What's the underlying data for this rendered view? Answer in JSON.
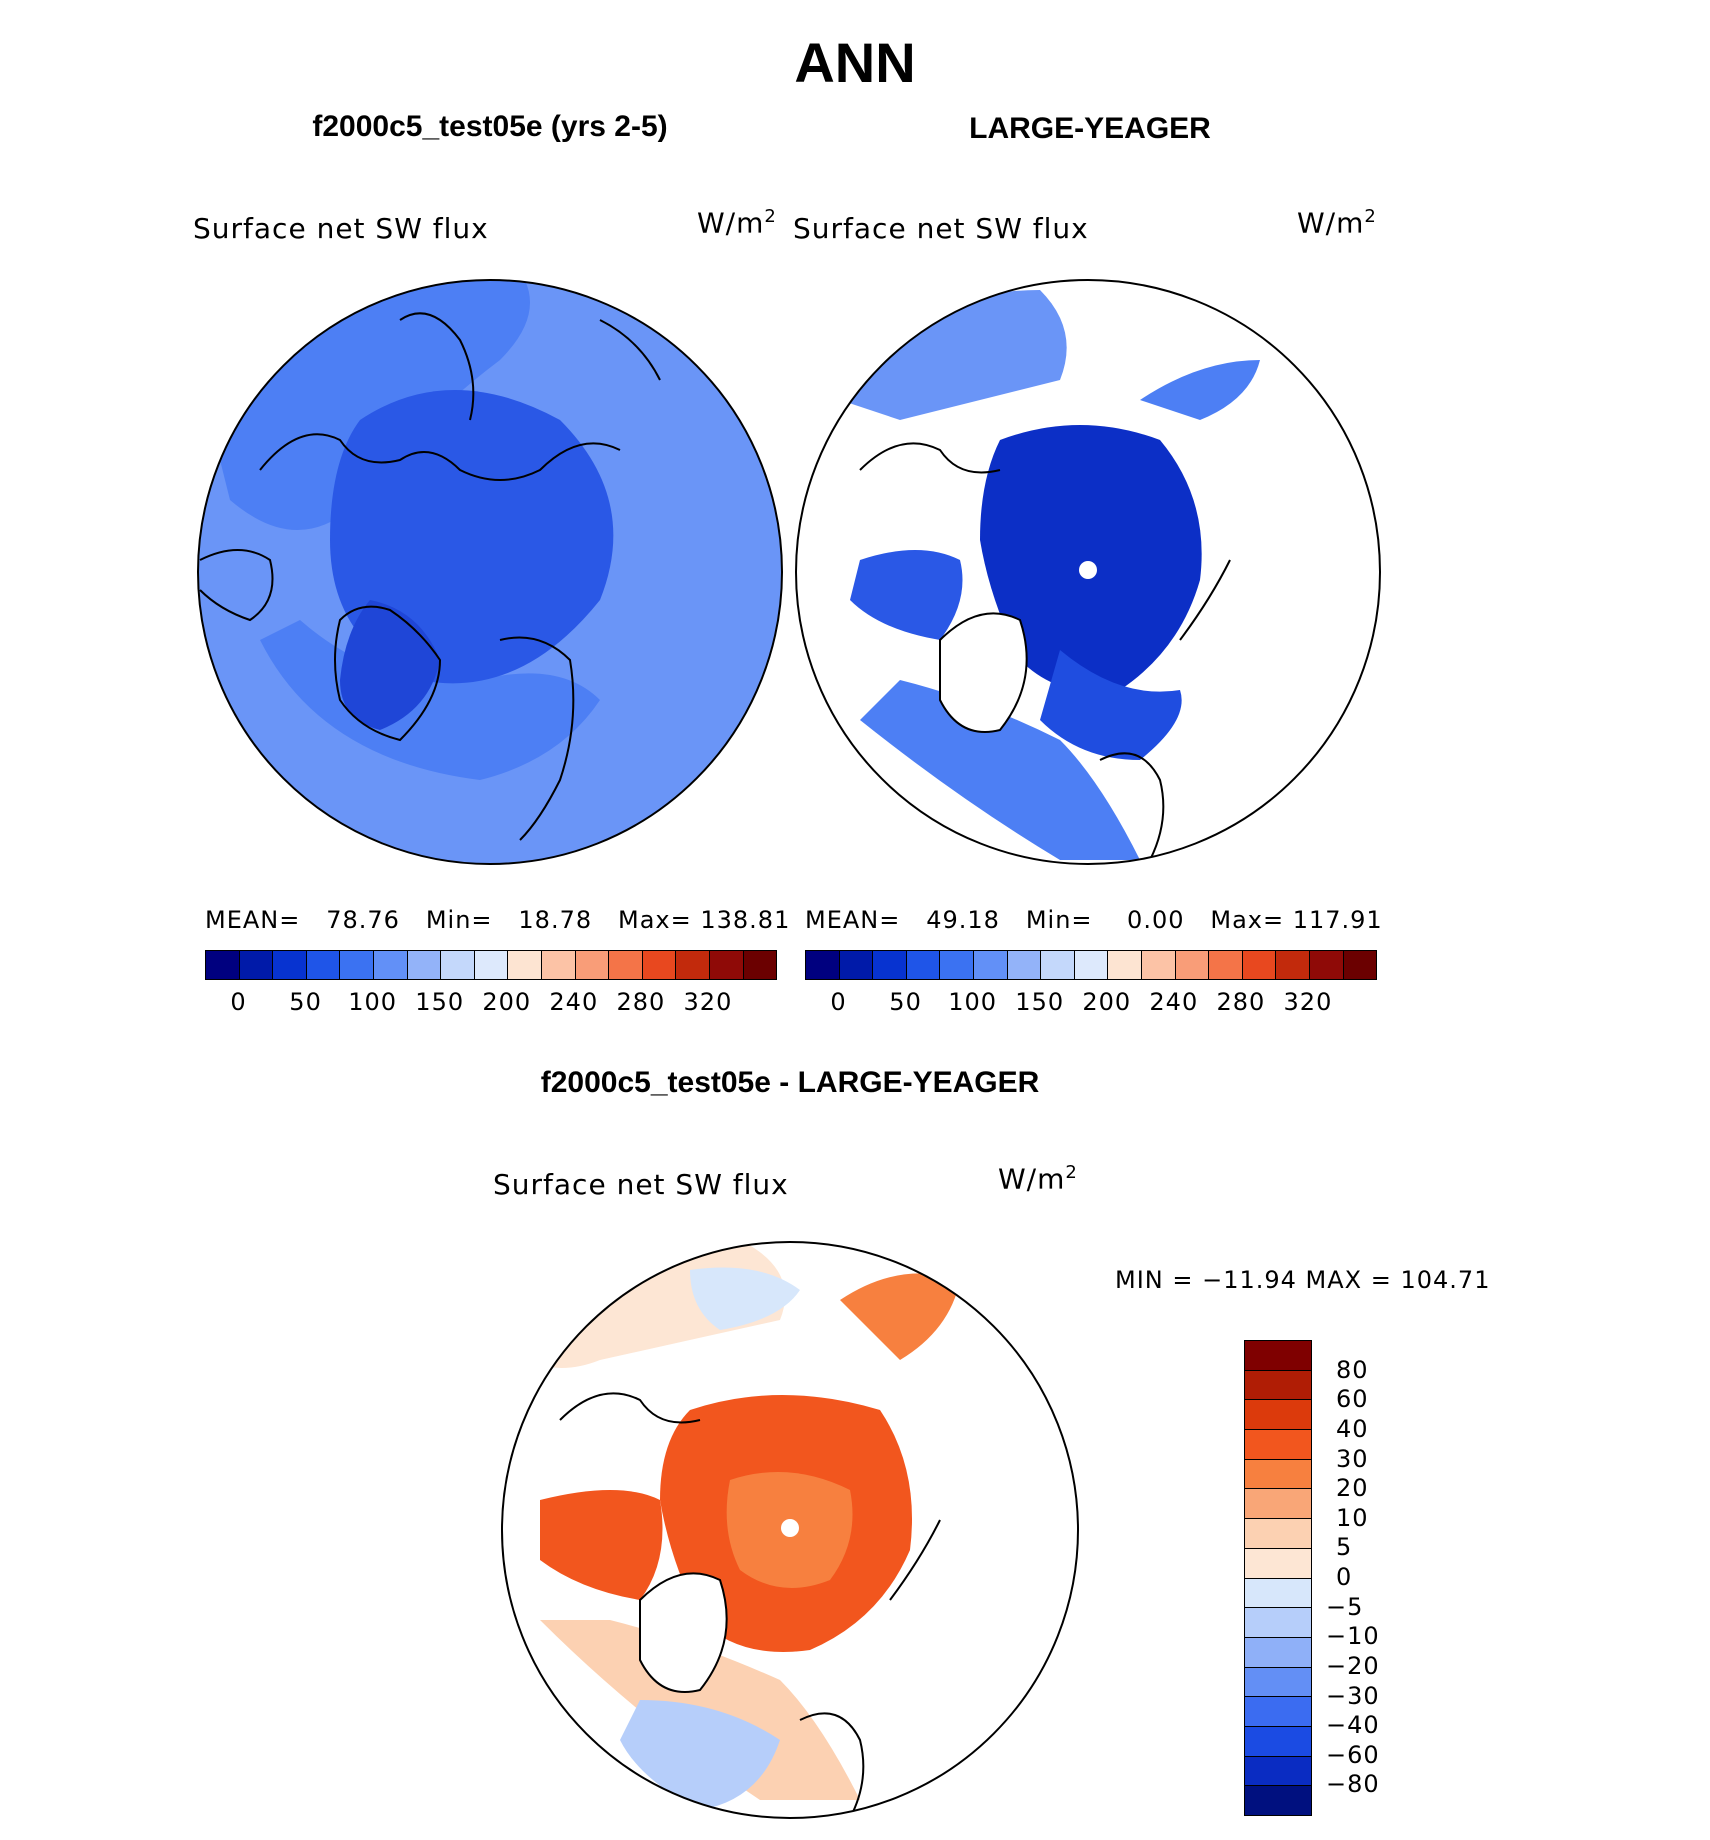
{
  "main_title": "ANN",
  "panels": [
    {
      "title": "f2000c5_test05e (yrs 2-5)",
      "variable": "Surface net SW flux",
      "units": "W/m",
      "units_sup": "2",
      "stats": "MEAN=   78.76   Min=   18.78   Max= 138.81",
      "colorbar_labels": [
        "0",
        "50",
        "100",
        "150",
        "200",
        "240",
        "280",
        "320"
      ]
    },
    {
      "title": "LARGE-YEAGER",
      "variable": "Surface net SW flux",
      "units": "W/m",
      "units_sup": "2",
      "stats": "MEAN=   49.18   Min=    0.00   Max= 117.91",
      "colorbar_labels": [
        "0",
        "50",
        "100",
        "150",
        "200",
        "240",
        "280",
        "320"
      ]
    }
  ],
  "diff_panel": {
    "title": "f2000c5_test05e - LARGE-YEAGER",
    "variable": "Surface net SW flux",
    "units": "W/m",
    "units_sup": "2",
    "minmax": "MIN = −11.94 MAX = 104.71",
    "colorbar_labels": [
      "80",
      "60",
      "40",
      "30",
      "20",
      "10",
      "5",
      "0",
      "−5",
      "−10",
      "−20",
      "−30",
      "−40",
      "−60",
      "−80"
    ]
  },
  "colors": {
    "abs_scale": [
      "#00007f",
      "#001aa9",
      "#0733d0",
      "#1f55e8",
      "#3b72f2",
      "#6290f7",
      "#93b3f9",
      "#c4d8fb",
      "#dde9fc",
      "#fde4d2",
      "#fcc3a6",
      "#f99d78",
      "#f47448",
      "#e8481f",
      "#c22a0c",
      "#8f0a07",
      "#6b0000"
    ],
    "diff_scale": [
      "#7f0000",
      "#b01d05",
      "#dc3a0c",
      "#f2561e",
      "#f7803f",
      "#f9a677",
      "#fcd1b2",
      "#fde6d4",
      "#d7e7fb",
      "#b6cefa",
      "#8fb0f8",
      "#638ff5",
      "#3b6cf1",
      "#1b4be3",
      "#0a2cc2",
      "#00107f"
    ],
    "land_outline": "#000000"
  },
  "map_regions": {
    "panel1": {
      "region_levels": [
        "background-75",
        "pacific-60",
        "arctic-40",
        "greenland-25",
        "atlantic-60"
      ]
    },
    "panel2": {
      "region_levels": [
        "land-missing",
        "arctic-0-25",
        "atlantic-50-75",
        "pacific-50-75"
      ]
    },
    "diff": {
      "region_levels": [
        "land-missing",
        "arctic-30-40",
        "pole-20",
        "atlantic-5-10",
        "nordic-negative-10",
        "pacific-5"
      ]
    }
  }
}
